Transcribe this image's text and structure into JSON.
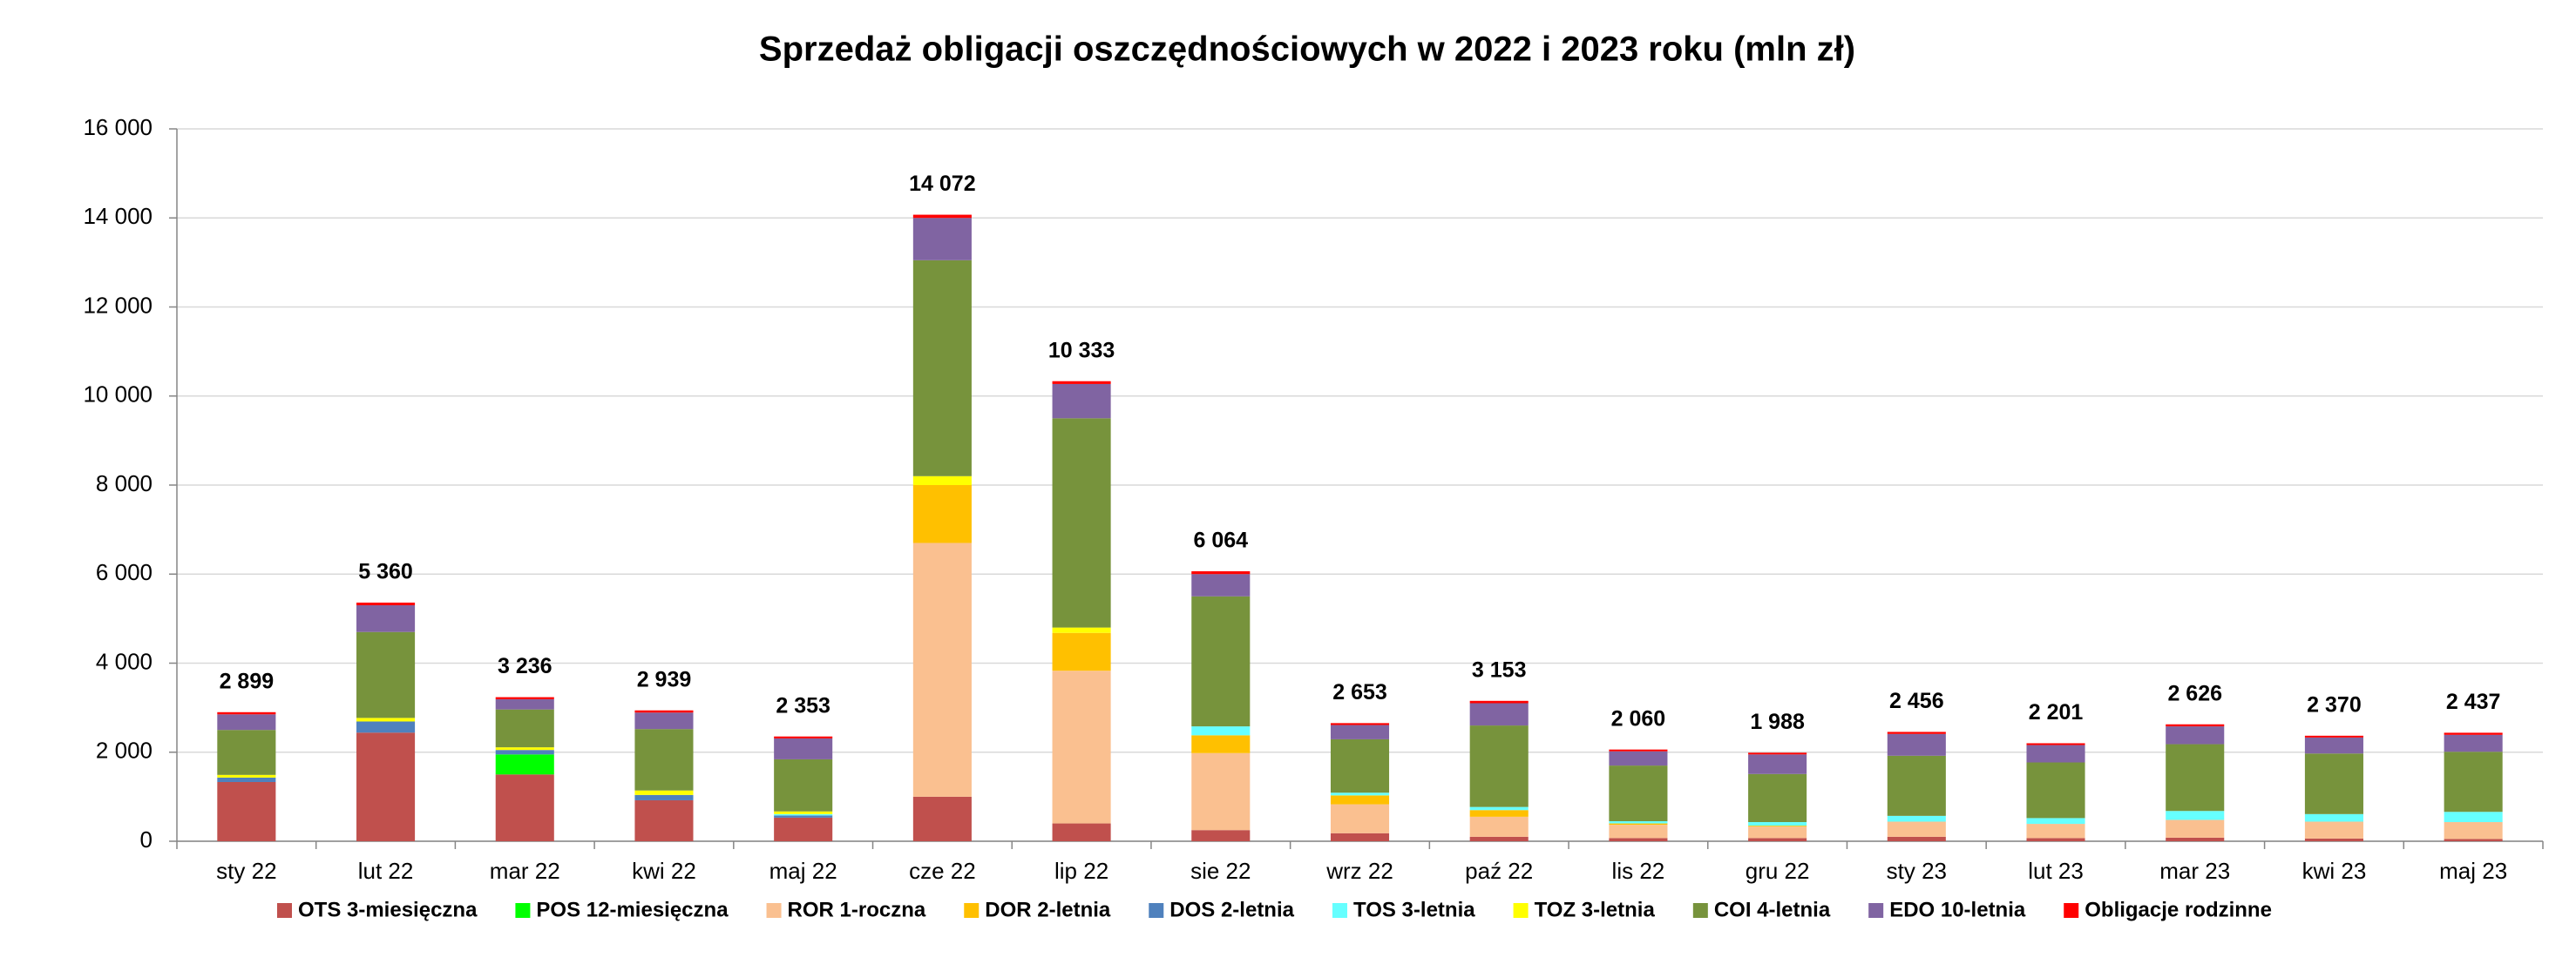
{
  "chart_data": {
    "type": "stacked_bar",
    "title": "Sprzedaż obligacji oszczędnościowych w 2022 i 2023 roku (mln zł)",
    "categories": [
      "sty 22",
      "lut 22",
      "mar 22",
      "kwi 22",
      "maj 22",
      "cze 22",
      "lip 22",
      "sie 22",
      "wrz 22",
      "paź 22",
      "lis 22",
      "gru 22",
      "sty 23",
      "lut 23",
      "mar 23",
      "kwi 23",
      "maj 23"
    ],
    "series": [
      {
        "name": "OTS 3-miesięczna",
        "color": "#c0504d",
        "values": [
          1330,
          2440,
          1500,
          920,
          530,
          1000,
          400,
          250,
          180,
          100,
          70,
          70,
          100,
          70,
          80,
          60,
          50
        ]
      },
      {
        "name": "POS 12-miesięczna",
        "color": "#00ff00",
        "values": [
          0,
          0,
          450,
          0,
          0,
          0,
          0,
          0,
          0,
          0,
          0,
          0,
          0,
          0,
          0,
          0,
          0
        ]
      },
      {
        "name": "ROR 1-roczna",
        "color": "#fac090",
        "values": [
          0,
          0,
          0,
          0,
          0,
          5700,
          3430,
          1730,
          650,
          450,
          300,
          260,
          340,
          320,
          400,
          380,
          380
        ]
      },
      {
        "name": "DOR 2-letnia",
        "color": "#ffc000",
        "values": [
          0,
          0,
          0,
          0,
          0,
          1300,
          850,
          400,
          200,
          150,
          30,
          20,
          0,
          0,
          0,
          0,
          0
        ]
      },
      {
        "name": "DOS 2-letnia",
        "color": "#4f81bd",
        "values": [
          100,
          250,
          100,
          120,
          50,
          0,
          0,
          0,
          0,
          0,
          0,
          0,
          0,
          0,
          0,
          0,
          0
        ]
      },
      {
        "name": "TOS 3-letnia",
        "color": "#66ffff",
        "values": [
          0,
          0,
          0,
          0,
          30,
          0,
          0,
          200,
          60,
          70,
          50,
          80,
          130,
          130,
          200,
          170,
          230
        ]
      },
      {
        "name": "TOZ 3-letnia",
        "color": "#ffff00",
        "values": [
          60,
          80,
          60,
          100,
          60,
          200,
          120,
          0,
          0,
          0,
          0,
          0,
          0,
          0,
          0,
          0,
          0
        ]
      },
      {
        "name": "COI 4-letnia",
        "color": "#77933c",
        "values": [
          1010,
          1930,
          850,
          1380,
          1170,
          4850,
          4700,
          2920,
          1200,
          1830,
          1250,
          1080,
          1350,
          1250,
          1500,
          1360,
          1350
        ]
      },
      {
        "name": "EDO 10-letnia",
        "color": "#8064a2",
        "values": [
          350,
          600,
          230,
          370,
          470,
          950,
          770,
          500,
          320,
          500,
          320,
          440,
          490,
          390,
          400,
          360,
          380
        ]
      },
      {
        "name": "Obligacje rodzinne",
        "color": "#ff0000",
        "values": [
          49,
          60,
          46,
          49,
          43,
          72,
          63,
          64,
          43,
          53,
          40,
          38,
          46,
          41,
          46,
          40,
          47
        ]
      }
    ],
    "totals": [
      2899,
      5360,
      3236,
      2939,
      2353,
      14072,
      10333,
      6064,
      2653,
      3153,
      2060,
      1988,
      2456,
      2201,
      2626,
      2370,
      2437
    ],
    "total_labels": [
      "2 899",
      "5 360",
      "3 236",
      "2 939",
      "2 353",
      "14 072",
      "10 333",
      "6 064",
      "2 653",
      "3 153",
      "2 060",
      "1 988",
      "2 456",
      "2 201",
      "2 626",
      "2 370",
      "2 437"
    ],
    "ylim": [
      0,
      16000
    ],
    "yticks": [
      {
        "value": 0,
        "label": "0"
      },
      {
        "value": 2000,
        "label": "2 000"
      },
      {
        "value": 4000,
        "label": "4 000"
      },
      {
        "value": 6000,
        "label": "6 000"
      },
      {
        "value": 8000,
        "label": "8 000"
      },
      {
        "value": 10000,
        "label": "10 000"
      },
      {
        "value": 12000,
        "label": "12 000"
      },
      {
        "value": 14000,
        "label": "14 000"
      },
      {
        "value": 16000,
        "label": "16 000"
      }
    ],
    "grid": true,
    "legend": "bottom"
  }
}
